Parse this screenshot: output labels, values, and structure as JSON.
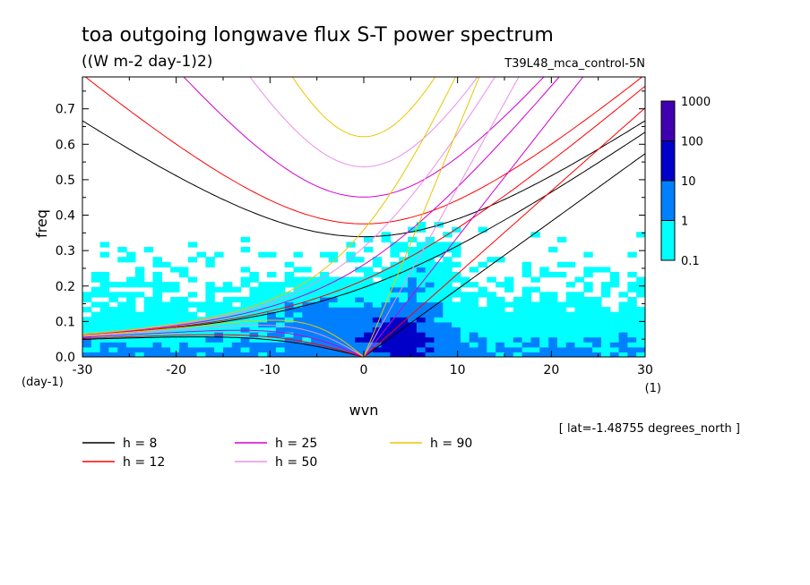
{
  "chart_data": {
    "type": "heatmap",
    "title": "toa outgoing longwave flux S-T power spectrum",
    "subtitle": "((W m-2 day-1)2)",
    "run_label": "T39L48_mca_control-5N",
    "xlabel": "wvn",
    "ylabel": "freq",
    "x_unit": "(1)",
    "y_unit": "(day-1)",
    "xlim": [
      -30,
      30
    ],
    "ylim": [
      0,
      0.79
    ],
    "x_ticks": [
      "-30",
      "-20",
      "-10",
      "0",
      "10",
      "20",
      "30"
    ],
    "y_ticks": [
      "0.0",
      "0.1",
      "0.2",
      "0.3",
      "0.4",
      "0.5",
      "0.6",
      "0.7"
    ],
    "colorbar": {
      "labels": [
        "1000",
        "100",
        "10",
        "1",
        "0.1"
      ],
      "levels": [
        0.1,
        1,
        10,
        100,
        1000
      ],
      "colors": [
        "#00ffff",
        "#0080ff",
        "#0000c8",
        "#4000b0"
      ]
    },
    "location_note": "[ lat=-1.48755 degrees_north ]",
    "dispersion_curves": [
      {
        "label": "h = 8",
        "color": "#000000"
      },
      {
        "label": "h = 12",
        "color": "#ff0000"
      },
      {
        "label": "h = 25",
        "color": "#d000d0"
      },
      {
        "label": "h = 50",
        "color": "#e890e8"
      },
      {
        "label": "h = 90",
        "color": "#e8c800"
      }
    ],
    "grid": false,
    "legend_position": "bottom"
  }
}
